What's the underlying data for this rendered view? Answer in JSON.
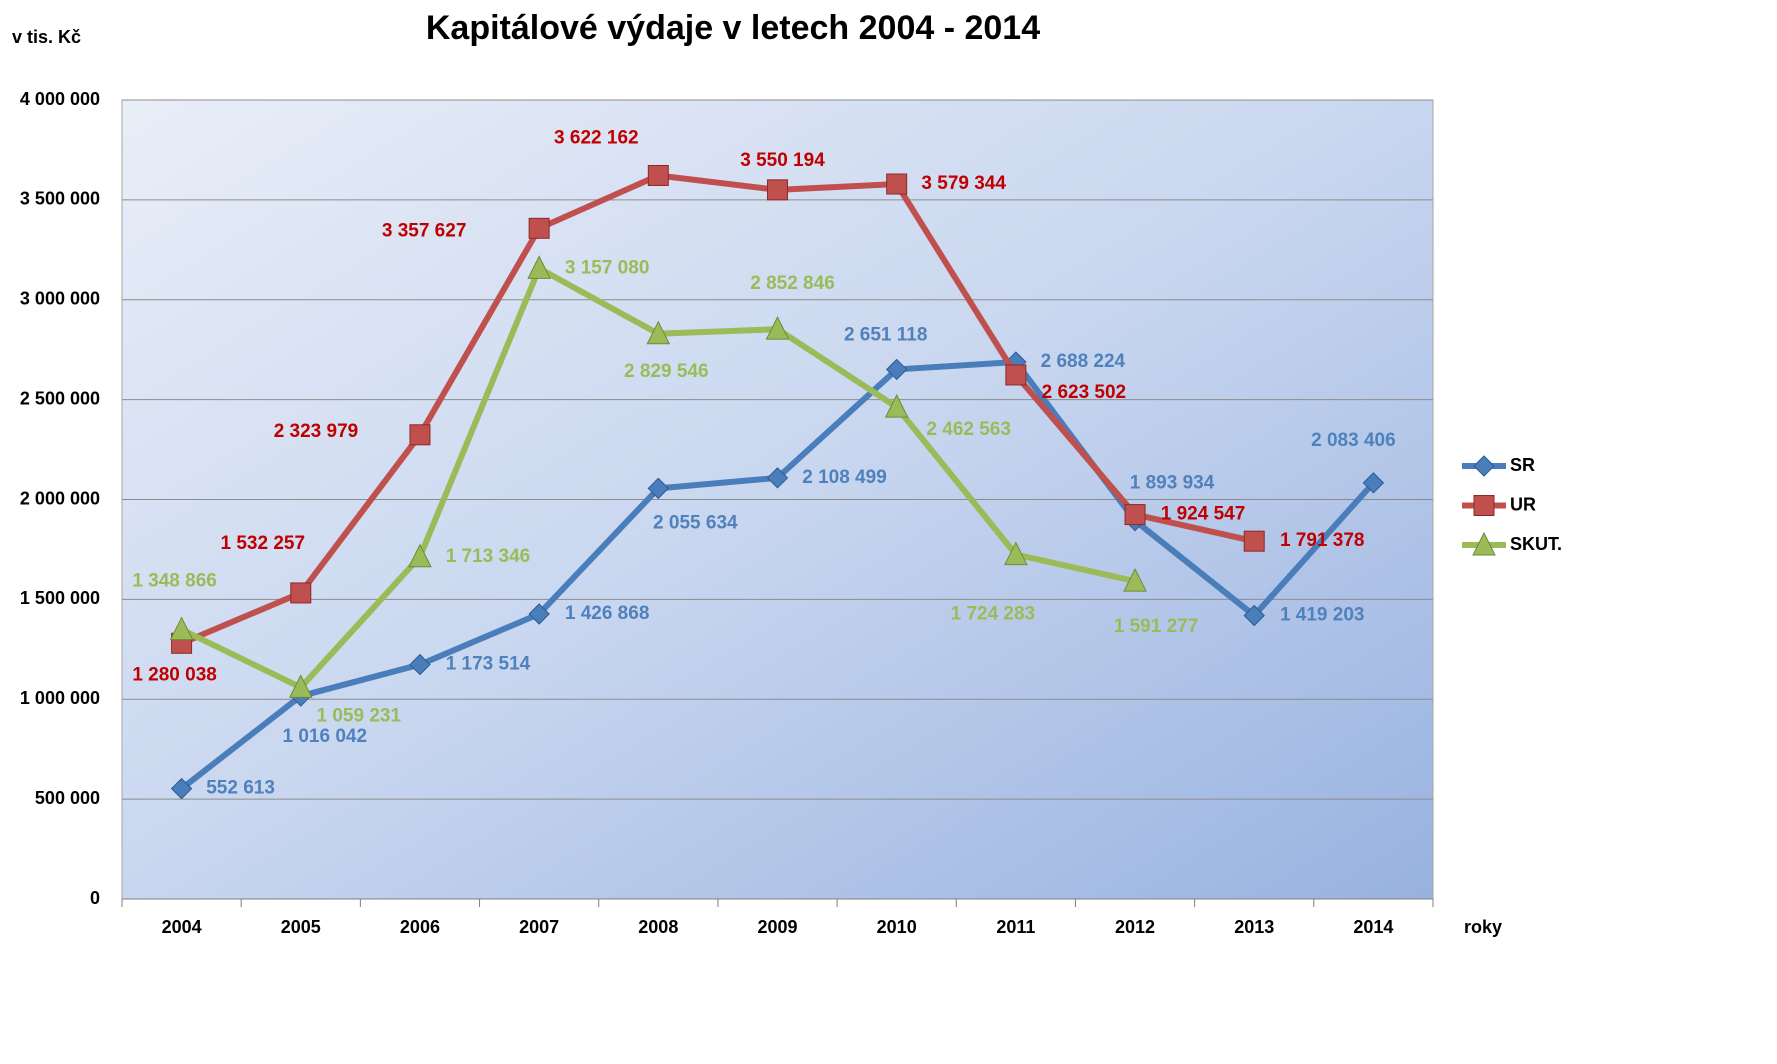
{
  "chart_data": {
    "type": "line",
    "title": "Kapitálové výdaje v letech 2004 - 2014",
    "y_label": "v tis. Kč",
    "x_label": "roky",
    "categories": [
      "2004",
      "2005",
      "2006",
      "2007",
      "2008",
      "2009",
      "2010",
      "2011",
      "2012",
      "2013",
      "2014"
    ],
    "ylim": [
      0,
      4000000
    ],
    "yticks": [
      0,
      {
        "value": 500000,
        "label": "500 000"
      },
      {
        "value": 1000000,
        "label": "1 000 000"
      },
      {
        "value": 1500000,
        "label": "1 500 000"
      },
      {
        "value": 2000000,
        "label": "2 000 000"
      },
      {
        "value": 2500000,
        "label": "2 500 000"
      },
      {
        "value": 3000000,
        "label": "3 000 000"
      },
      {
        "value": 3500000,
        "label": "3 500 000"
      },
      {
        "value": 4000000,
        "label": "4 000 000"
      }
    ],
    "grid": true,
    "legend": "right",
    "series": [
      {
        "name": "SR",
        "color": "#4a7ebb",
        "label_color": "#4f81bd",
        "marker": "diamond",
        "values": [
          552613,
          1016042,
          1173514,
          1426868,
          2055634,
          2108499,
          2651118,
          2688224,
          1893934,
          1419203,
          2083406
        ],
        "value_labels": [
          "552 613",
          "1 016 042",
          "1 173 514",
          "1 426 868",
          "2 055 634",
          "2 108 499",
          "2 651 118",
          "2 688 224",
          "1 893 934",
          "1 419 203",
          "2 083 406"
        ]
      },
      {
        "name": "UR",
        "color": "#c0504d",
        "label_color": "#c00000",
        "marker": "square",
        "values": [
          1280038,
          1532257,
          2323979,
          3357627,
          3622162,
          3550194,
          3579344,
          2623502,
          1924547,
          1791378,
          null
        ],
        "value_labels": [
          "1 280 038",
          "1 532 257",
          "2 323 979",
          "3 357 627",
          "3 622 162",
          "3 550 194",
          "3 579 344",
          "2 623 502",
          "1 924 547",
          "1 791 378",
          null
        ]
      },
      {
        "name": "SKUT.",
        "color": "#9bbb59",
        "label_color": "#9bbb59",
        "marker": "triangle",
        "values": [
          1348866,
          1059231,
          1713346,
          3157080,
          2829546,
          2852846,
          2462563,
          1724283,
          1591277,
          null,
          null
        ],
        "value_labels": [
          "1 348 866",
          "1 059 231",
          "1 713 346",
          "3 157 080",
          "2 829 546",
          "2 852 846",
          "2 462 563",
          "1 724 283",
          "1 591 277",
          null,
          null
        ]
      }
    ]
  }
}
